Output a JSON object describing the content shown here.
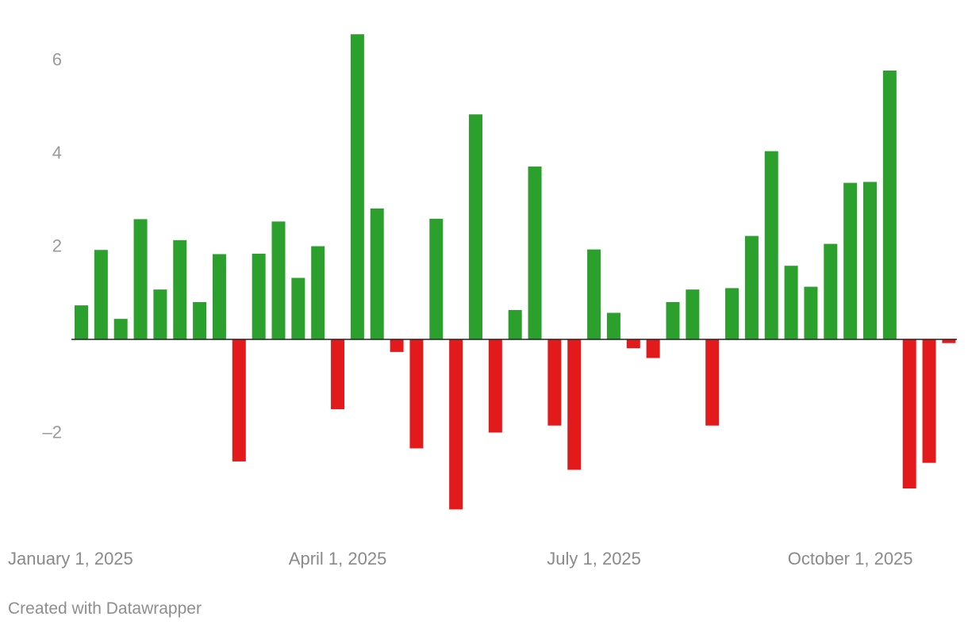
{
  "chart_data": {
    "type": "bar",
    "title": "",
    "xlabel": "",
    "ylabel": "",
    "ylim": [
      -3.8,
      6.6
    ],
    "y_ticks": [
      6,
      4,
      2,
      -2
    ],
    "y_tick_labels": [
      "6",
      "4",
      "2",
      "–2"
    ],
    "x_tick_labels": [
      {
        "label": "January 1, 2025",
        "index": 0
      },
      {
        "label": "April 1, 2025",
        "index": 13
      },
      {
        "label": "July 1, 2025",
        "index": 26
      },
      {
        "label": "October 1, 2025",
        "index": 39
      }
    ],
    "grid": false,
    "colors": {
      "positive": "#2ca02c",
      "negative": "#e31a1c",
      "baseline": "#222222"
    },
    "values": [
      0.73,
      1.92,
      0.44,
      2.58,
      1.07,
      2.13,
      0.8,
      1.83,
      -2.62,
      1.84,
      2.53,
      1.32,
      2.0,
      -1.5,
      6.55,
      2.81,
      -0.27,
      -2.34,
      2.59,
      -3.65,
      4.83,
      -2.0,
      0.63,
      3.71,
      -1.85,
      -2.8,
      1.93,
      0.57,
      -0.19,
      -0.4,
      0.8,
      1.07,
      -1.85,
      1.1,
      2.22,
      4.04,
      1.58,
      1.13,
      2.05,
      3.36,
      3.38,
      5.77,
      -3.2,
      -2.65,
      -0.08
    ]
  },
  "footer": {
    "credit": "Created with Datawrapper"
  }
}
